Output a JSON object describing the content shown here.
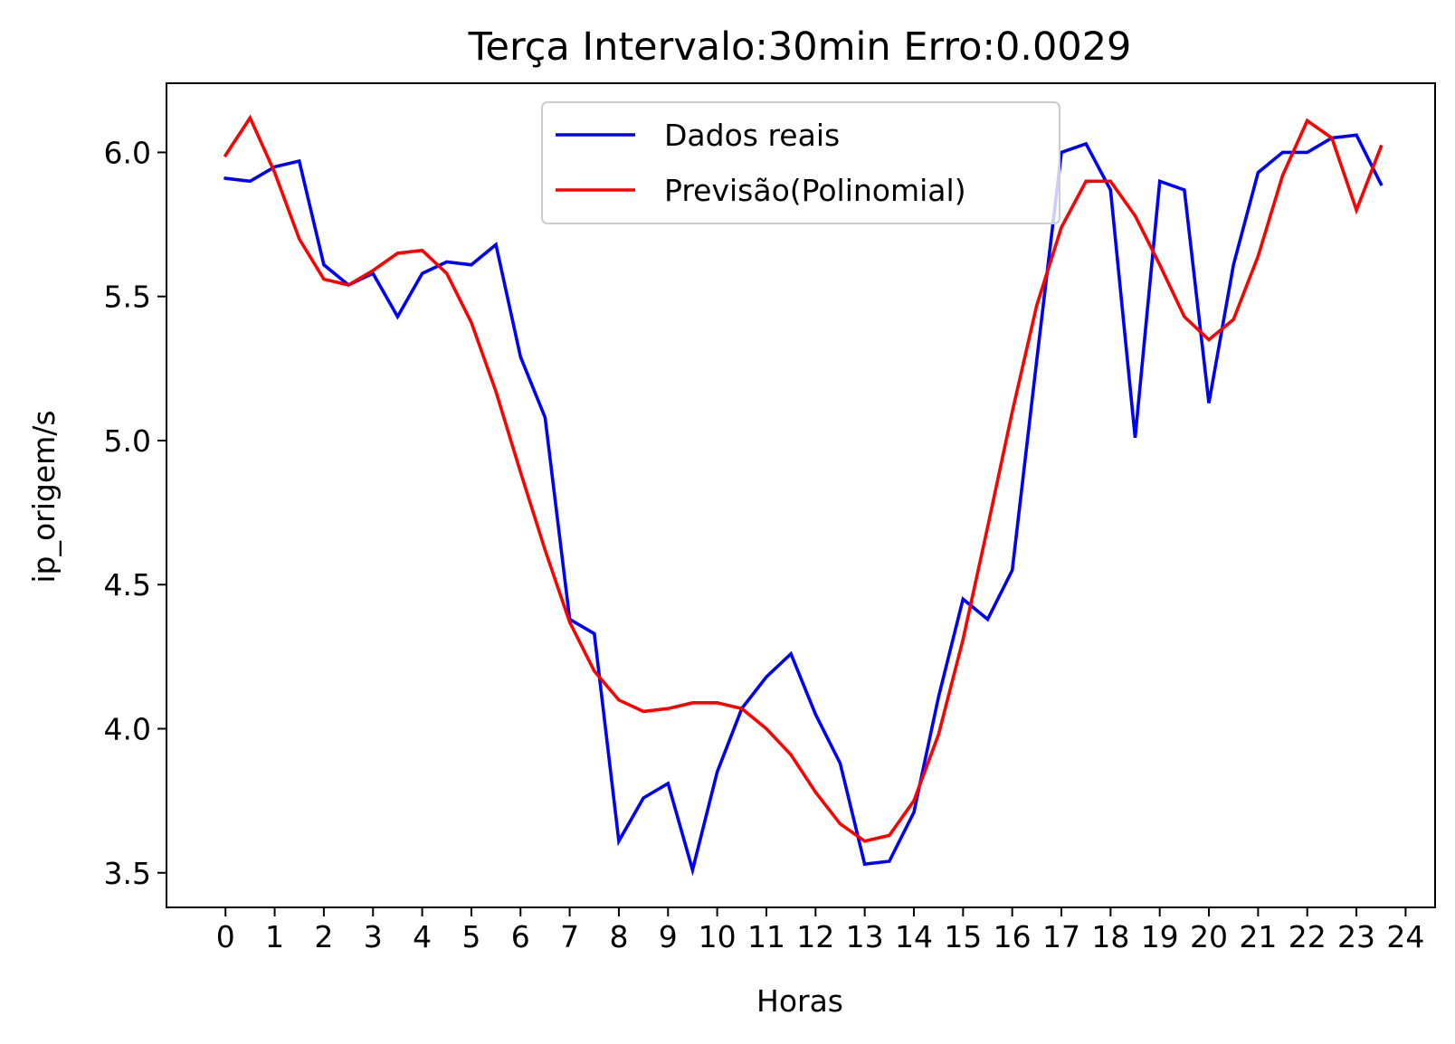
{
  "chart_data": {
    "type": "line",
    "title": "Terça Intervalo:30min Erro:0.0029",
    "xlabel": "Horas",
    "ylabel": "ip_origem/s",
    "xlim": [
      -1.2,
      24.6
    ],
    "ylim": [
      3.38,
      6.24
    ],
    "xticks": [
      0,
      1,
      2,
      3,
      4,
      5,
      6,
      7,
      8,
      9,
      10,
      11,
      12,
      13,
      14,
      15,
      16,
      17,
      18,
      19,
      20,
      21,
      22,
      23,
      24
    ],
    "xtick_labels": [
      "0",
      "1",
      "2",
      "3",
      "4",
      "5",
      "6",
      "7",
      "8",
      "9",
      "10",
      "11",
      "12",
      "13",
      "14",
      "15",
      "16",
      "17",
      "18",
      "19",
      "20",
      "21",
      "22",
      "23",
      "24"
    ],
    "yticks": [
      3.5,
      4.0,
      4.5,
      5.0,
      5.5,
      6.0
    ],
    "ytick_labels": [
      "3.5",
      "4.0",
      "4.5",
      "5.0",
      "5.5",
      "6.0"
    ],
    "grid": false,
    "legend_position": "top-center",
    "x": [
      0,
      0.5,
      1,
      1.5,
      2,
      2.5,
      3,
      3.5,
      4,
      4.5,
      5,
      5.5,
      6,
      6.5,
      7,
      7.5,
      8,
      8.5,
      9,
      9.5,
      10,
      10.5,
      11,
      11.5,
      12,
      12.5,
      13,
      13.5,
      14,
      14.5,
      15,
      15.5,
      16,
      16.5,
      17,
      17.5,
      18,
      18.5,
      19,
      19.5,
      20,
      20.5,
      21,
      21.5,
      22,
      22.5,
      23,
      23.5
    ],
    "series": [
      {
        "name": "Dados reais",
        "color": "#0000ff",
        "values": [
          5.91,
          5.9,
          5.95,
          5.97,
          5.61,
          5.54,
          5.58,
          5.43,
          5.58,
          5.62,
          5.61,
          5.68,
          5.29,
          5.08,
          4.38,
          4.33,
          3.61,
          3.76,
          3.81,
          3.51,
          3.85,
          4.07,
          4.18,
          4.26,
          4.05,
          3.88,
          3.53,
          3.54,
          3.71,
          4.11,
          4.45,
          4.38,
          4.55,
          5.28,
          6.0,
          6.03,
          5.87,
          5.01,
          5.9,
          5.87,
          5.13,
          5.61,
          5.93,
          6.0,
          6.0,
          6.05,
          6.06,
          5.89
        ]
      },
      {
        "name": "Previsão(Polinomial)",
        "color": "#ff0000",
        "values": [
          5.99,
          6.12,
          5.93,
          5.7,
          5.56,
          5.54,
          5.59,
          5.65,
          5.66,
          5.58,
          5.41,
          5.17,
          4.89,
          4.62,
          4.37,
          4.2,
          4.1,
          4.06,
          4.07,
          4.09,
          4.09,
          4.07,
          4.0,
          3.91,
          3.78,
          3.67,
          3.61,
          3.63,
          3.75,
          3.98,
          4.31,
          4.7,
          5.1,
          5.47,
          5.74,
          5.9,
          5.9,
          5.78,
          5.61,
          5.43,
          5.35,
          5.42,
          5.64,
          5.92,
          6.11,
          6.05,
          5.8,
          6.02
        ]
      }
    ]
  }
}
